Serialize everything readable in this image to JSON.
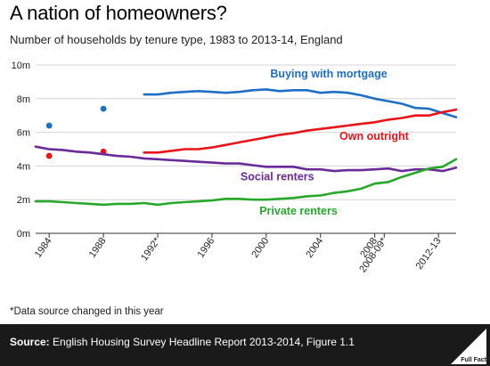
{
  "header": {
    "title": "A nation of homeowners?",
    "subtitle": "Number of households by tenure type, 1983 to 2013-14, England"
  },
  "footnote": "*Data source changed in this year",
  "footer": {
    "source_label": "Source:",
    "source_text": "English Housing Survey Headline Report 2013-2014, Figure 1.1",
    "logo_text": "Full Fact"
  },
  "colors": {
    "mortgage": "#1f6fc6",
    "outright": "#e8141a",
    "social": "#6a2b9a",
    "private": "#28a82a",
    "grid": "#d6d6d6"
  },
  "chart_data": {
    "type": "line",
    "xlim": [
      1983,
      2014
    ],
    "ylim": [
      0,
      10
    ],
    "ylabel": "",
    "xlabel": "",
    "y_ticks": [
      {
        "value": 0,
        "label": "0m"
      },
      {
        "value": 2,
        "label": "2m"
      },
      {
        "value": 4,
        "label": "4m"
      },
      {
        "value": 6,
        "label": "6m"
      },
      {
        "value": 8,
        "label": "8m"
      },
      {
        "value": 10,
        "label": "10m"
      }
    ],
    "x_ticks": [
      {
        "value": 1984,
        "label": "1984"
      },
      {
        "value": 1988,
        "label": "1988"
      },
      {
        "value": 1992,
        "label": "1992*"
      },
      {
        "value": 1996,
        "label": "1996"
      },
      {
        "value": 2000,
        "label": "2000"
      },
      {
        "value": 2004,
        "label": "2004"
      },
      {
        "value": 2008,
        "label": "2008"
      },
      {
        "value": 2008.7,
        "label": "2008-09*"
      },
      {
        "value": 2012.7,
        "label": "2012-13"
      }
    ],
    "grid": "horizontal",
    "series": [
      {
        "name": "Buying with mortgage",
        "color_key": "mortgage",
        "points": [
          [
            1984,
            6.4
          ],
          [
            1988,
            7.4
          ]
        ],
        "x": [
          1991,
          1992,
          1993,
          1994,
          1995,
          1996,
          1997,
          1998,
          1999,
          2000,
          2001,
          2002,
          2003,
          2004,
          2005,
          2006,
          2007,
          2008,
          2009,
          2010,
          2011,
          2012,
          2013,
          2014
        ],
        "values": [
          8.25,
          8.25,
          8.35,
          8.4,
          8.45,
          8.4,
          8.35,
          8.4,
          8.5,
          8.55,
          8.45,
          8.5,
          8.5,
          8.35,
          8.4,
          8.35,
          8.2,
          8.0,
          7.85,
          7.7,
          7.45,
          7.4,
          7.15,
          6.9
        ],
        "label": {
          "text": "Buying with mortgage",
          "x": 2000.3,
          "y": 9.25
        }
      },
      {
        "name": "Own outright",
        "color_key": "outright",
        "points": [
          [
            1984,
            4.6
          ],
          [
            1988,
            4.85
          ]
        ],
        "x": [
          1991,
          1992,
          1993,
          1994,
          1995,
          1996,
          1997,
          1998,
          1999,
          2000,
          2001,
          2002,
          2003,
          2004,
          2005,
          2006,
          2007,
          2008,
          2009,
          2010,
          2011,
          2012,
          2013,
          2014
        ],
        "values": [
          4.8,
          4.8,
          4.9,
          5.0,
          5.0,
          5.1,
          5.25,
          5.4,
          5.55,
          5.7,
          5.85,
          5.95,
          6.1,
          6.2,
          6.3,
          6.4,
          6.5,
          6.6,
          6.75,
          6.85,
          7.0,
          7.0,
          7.2,
          7.35
        ],
        "label": {
          "text": "Own outright",
          "x": 2005.4,
          "y": 5.55
        }
      },
      {
        "name": "Social renters",
        "color_key": "social",
        "points": [],
        "x": [
          1983,
          1984,
          1985,
          1986,
          1987,
          1988,
          1989,
          1990,
          1991,
          1992,
          1993,
          1994,
          1995,
          1996,
          1997,
          1998,
          1999,
          2000,
          2001,
          2002,
          2003,
          2004,
          2005,
          2006,
          2007,
          2008,
          2009,
          2010,
          2011,
          2012,
          2013,
          2014
        ],
        "values": [
          5.15,
          5.0,
          4.95,
          4.85,
          4.8,
          4.7,
          4.6,
          4.55,
          4.45,
          4.4,
          4.35,
          4.3,
          4.25,
          4.2,
          4.15,
          4.15,
          4.05,
          3.95,
          3.95,
          3.95,
          3.8,
          3.8,
          3.7,
          3.75,
          3.75,
          3.8,
          3.85,
          3.7,
          3.8,
          3.8,
          3.7,
          3.9
        ],
        "label": {
          "text": "Social renters",
          "x": 1998.1,
          "y": 3.15
        }
      },
      {
        "name": "Private renters",
        "color_key": "private",
        "points": [],
        "x": [
          1983,
          1984,
          1985,
          1986,
          1987,
          1988,
          1989,
          1990,
          1991,
          1992,
          1993,
          1994,
          1995,
          1996,
          1997,
          1998,
          1999,
          2000,
          2001,
          2002,
          2003,
          2004,
          2005,
          2006,
          2007,
          2008,
          2009,
          2010,
          2011,
          2012,
          2013,
          2014
        ],
        "values": [
          1.9,
          1.9,
          1.85,
          1.8,
          1.75,
          1.7,
          1.75,
          1.75,
          1.8,
          1.7,
          1.8,
          1.85,
          1.9,
          1.95,
          2.05,
          2.05,
          2.0,
          2.0,
          2.05,
          2.1,
          2.2,
          2.25,
          2.4,
          2.5,
          2.65,
          2.95,
          3.05,
          3.35,
          3.6,
          3.85,
          3.95,
          4.4
        ],
        "label": {
          "text": "Private renters",
          "x": 1999.5,
          "y": 1.1
        }
      }
    ]
  }
}
